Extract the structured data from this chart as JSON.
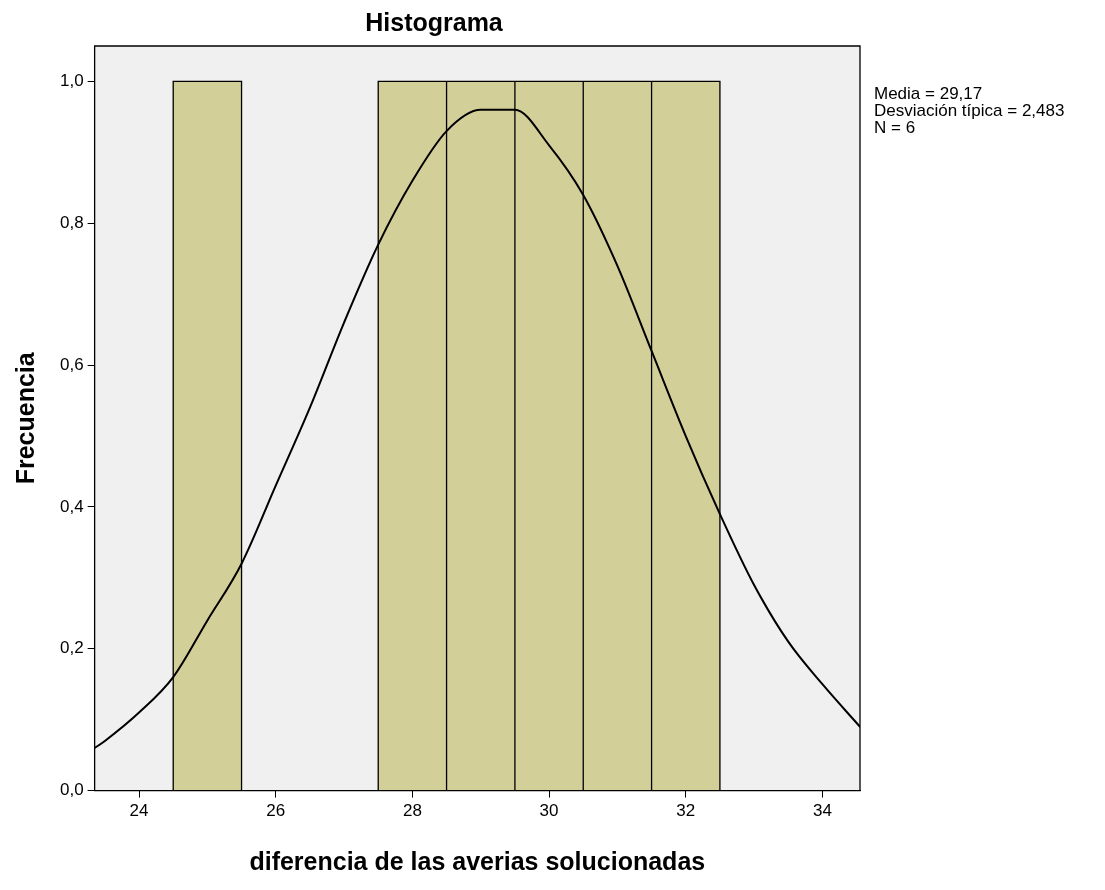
{
  "chart_data": {
    "type": "histogram",
    "title": "Histograma",
    "xlabel": "diferencia de las averias solucionadas",
    "ylabel": "Frecuencia",
    "bins": [
      24.5,
      25.5,
      26.5,
      27.5,
      28.5,
      29.5,
      30.5,
      31.5,
      32.5
    ],
    "values": [
      1,
      0,
      0,
      1,
      1,
      1,
      1,
      1
    ],
    "color": "#d3cf99",
    "series": [
      {
        "type": "line",
        "color": "#000000",
        "x": [
          23.35,
          23.5,
          24,
          24.5,
          25,
          25.5,
          26,
          26.5,
          27,
          27.5,
          28,
          28.5,
          29,
          29.17,
          29.5,
          30,
          30.5,
          31,
          31.5,
          32,
          32.5,
          33,
          33.5,
          34,
          34.55
        ],
        "values": [
          0.06,
          0.07,
          0.11,
          0.16,
          0.24,
          0.32,
          0.43,
          0.54,
          0.66,
          0.77,
          0.86,
          0.93,
          0.96,
          0.96,
          0.96,
          0.91,
          0.84,
          0.74,
          0.62,
          0.5,
          0.39,
          0.29,
          0.21,
          0.15,
          0.09
        ]
      }
    ],
    "xlim": [
      23.35,
      34.55
    ],
    "xticks": [
      24,
      26,
      28,
      30,
      32,
      34
    ],
    "ylim": [
      0,
      1.05
    ],
    "yticks": [
      {
        "value": 0,
        "label": "0,0"
      },
      {
        "value": 0.2,
        "label": "0,2"
      },
      {
        "value": 0.4,
        "label": "0,4"
      },
      {
        "value": 0.6,
        "label": "0,6"
      },
      {
        "value": 0.8,
        "label": "0,8"
      },
      {
        "value": 1,
        "label": "1,0"
      }
    ],
    "annotations": [
      "Media = 29,17",
      "Desviación típica = 2,483",
      "N = 6"
    ],
    "grid": false,
    "legend": false
  }
}
